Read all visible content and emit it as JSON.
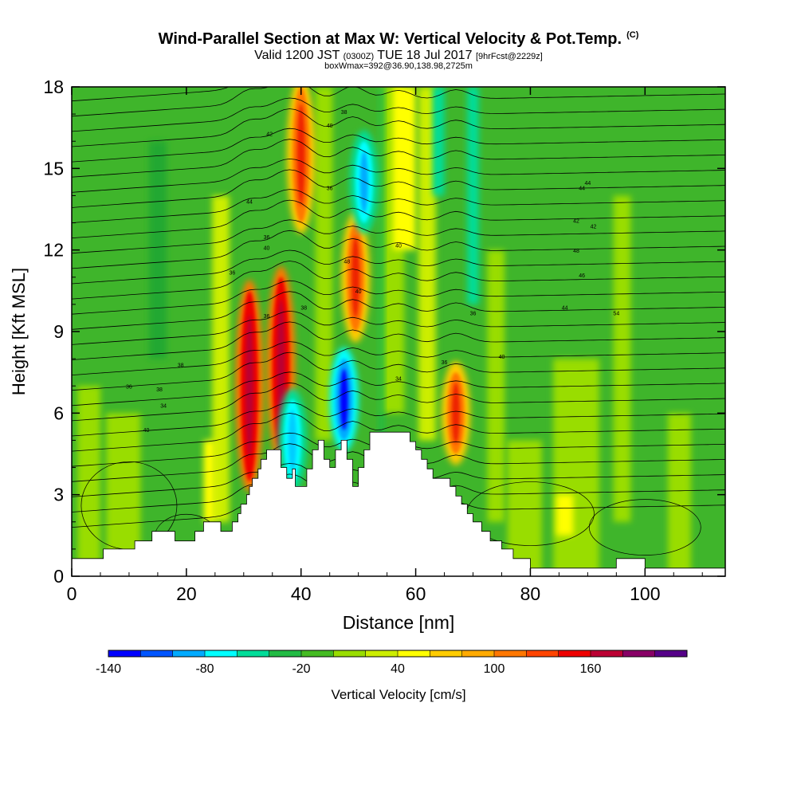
{
  "chart_data": {
    "type": "heatmap",
    "title": "Wind-Parallel Section at Max W: Vertical Velocity & Pot.Temp.",
    "title_tag": "(C)",
    "subtitle_main": "Valid 1200 JST",
    "subtitle_utc": "(0300Z)",
    "subtitle_date": "TUE 18 Jul 2017",
    "subtitle_fcst": "[9hrFcst@2229z]",
    "subtitle2": "boxWmax=392@36.90,138.98,2725m",
    "xlabel": "Distance [nm]",
    "ylabel": "Height [Kft MSL]",
    "xlim": [
      0,
      114
    ],
    "ylim": [
      0,
      18
    ],
    "xticks": [
      0,
      20,
      40,
      60,
      80,
      100
    ],
    "yticks": [
      0,
      3,
      6,
      9,
      12,
      15,
      18
    ],
    "colorbar": {
      "label": "Vertical Velocity [cm/s]",
      "ticks": [
        "-140",
        "-80",
        "-20",
        "40",
        "100",
        "160"
      ],
      "colors": [
        "#0000ff",
        "#0055ff",
        "#00aaff",
        "#00ffff",
        "#00dd99",
        "#22bb44",
        "#44bb22",
        "#99dd00",
        "#ccee00",
        "#ffff00",
        "#ffcc00",
        "#ffaa00",
        "#ff7700",
        "#ff4400",
        "#ee0000",
        "#bb0033",
        "#880066",
        "#550088"
      ]
    },
    "updraft_cores": [
      {
        "x": 31,
        "y_bottom": 3.5,
        "y_top": 10.5,
        "w_max_cm_s": 160
      },
      {
        "x": 36.5,
        "y_bottom": 4.5,
        "y_top": 11,
        "w_max_cm_s": 170
      },
      {
        "x": 40,
        "y_bottom": 13,
        "y_top": 18,
        "w_max_cm_s": 100
      },
      {
        "x": 49.5,
        "y_bottom": 9,
        "y_top": 13,
        "w_max_cm_s": 110
      },
      {
        "x": 67,
        "y_bottom": 4.5,
        "y_top": 7.5,
        "w_max_cm_s": 110
      }
    ],
    "downdraft_cores": [
      {
        "x": 47.5,
        "y_bottom": 5,
        "y_top": 8,
        "w_min_cm_s": -140
      },
      {
        "x": 51,
        "y_bottom": 13,
        "y_top": 16,
        "w_min_cm_s": -110
      },
      {
        "x": 38.5,
        "y_bottom": 3.5,
        "y_top": 6.5,
        "w_min_cm_s": -80
      }
    ],
    "isentrope_labels": [
      "40",
      "36",
      "34",
      "36",
      "40",
      "38",
      "42",
      "44",
      "36",
      "40",
      "38",
      "40",
      "36",
      "44",
      "42",
      "46",
      "44",
      "48",
      "54",
      "38",
      "44",
      "42",
      "40",
      "48",
      "38",
      "34",
      "36",
      "36",
      "40",
      "36"
    ],
    "terrain_profile": [
      [
        0,
        0.65
      ],
      [
        5.5,
        0.65
      ],
      [
        5.5,
        1
      ],
      [
        11,
        1
      ],
      [
        11,
        1.3
      ],
      [
        14,
        1.3
      ],
      [
        14,
        1.65
      ],
      [
        18,
        1.65
      ],
      [
        18,
        1.3
      ],
      [
        21.5,
        1.3
      ],
      [
        21.5,
        1.65
      ],
      [
        23,
        1.65
      ],
      [
        23,
        2
      ],
      [
        26,
        2
      ],
      [
        26,
        1.65
      ],
      [
        28,
        1.65
      ],
      [
        28,
        2
      ],
      [
        29,
        2
      ],
      [
        29,
        2.3
      ],
      [
        29.5,
        2.3
      ],
      [
        29.5,
        2.65
      ],
      [
        30.5,
        2.65
      ],
      [
        30.5,
        3
      ],
      [
        31,
        3
      ],
      [
        31,
        3.3
      ],
      [
        31.5,
        3.3
      ],
      [
        31.5,
        3.6
      ],
      [
        32.5,
        3.6
      ],
      [
        32.5,
        3.95
      ],
      [
        33,
        3.95
      ],
      [
        33,
        4.3
      ],
      [
        34,
        4.3
      ],
      [
        34,
        4.65
      ],
      [
        36.5,
        4.65
      ],
      [
        36.5,
        4
      ],
      [
        37.5,
        4
      ],
      [
        37.5,
        3.6
      ],
      [
        38.5,
        3.6
      ],
      [
        38.5,
        3.95
      ],
      [
        39,
        3.95
      ],
      [
        39,
        3.3
      ],
      [
        41,
        3.3
      ],
      [
        41,
        3.95
      ],
      [
        42,
        3.95
      ],
      [
        42,
        4.65
      ],
      [
        43,
        4.65
      ],
      [
        43,
        5
      ],
      [
        44,
        5
      ],
      [
        44,
        4.3
      ],
      [
        45,
        4.3
      ],
      [
        45,
        4
      ],
      [
        46,
        4
      ],
      [
        46,
        4.65
      ],
      [
        47,
        4.65
      ],
      [
        47,
        5
      ],
      [
        48,
        5
      ],
      [
        48,
        4.3
      ],
      [
        49,
        4.3
      ],
      [
        49,
        3.3
      ],
      [
        50,
        3.3
      ],
      [
        50,
        4
      ],
      [
        51,
        4
      ],
      [
        51,
        4.65
      ],
      [
        52,
        4.65
      ],
      [
        52,
        5.3
      ],
      [
        59,
        5.3
      ],
      [
        59,
        4.95
      ],
      [
        60,
        4.95
      ],
      [
        60,
        4.65
      ],
      [
        61,
        4.65
      ],
      [
        61,
        4.3
      ],
      [
        62,
        4.3
      ],
      [
        62,
        3.95
      ],
      [
        63,
        3.95
      ],
      [
        63,
        3.6
      ],
      [
        66,
        3.6
      ],
      [
        66,
        3.3
      ],
      [
        67,
        3.3
      ],
      [
        67,
        2.95
      ],
      [
        68,
        2.95
      ],
      [
        68,
        2.65
      ],
      [
        69,
        2.65
      ],
      [
        69,
        2.3
      ],
      [
        70,
        2.3
      ],
      [
        70,
        2
      ],
      [
        71.5,
        2
      ],
      [
        71.5,
        1.65
      ],
      [
        73,
        1.65
      ],
      [
        73,
        1.3
      ],
      [
        75,
        1.3
      ],
      [
        75,
        1
      ],
      [
        77,
        1
      ],
      [
        77,
        0.65
      ],
      [
        80,
        0.65
      ],
      [
        80,
        0.3
      ],
      [
        95,
        0.3
      ],
      [
        95,
        0.65
      ],
      [
        100,
        0.65
      ],
      [
        100,
        0.3
      ],
      [
        114,
        0.3
      ]
    ]
  }
}
